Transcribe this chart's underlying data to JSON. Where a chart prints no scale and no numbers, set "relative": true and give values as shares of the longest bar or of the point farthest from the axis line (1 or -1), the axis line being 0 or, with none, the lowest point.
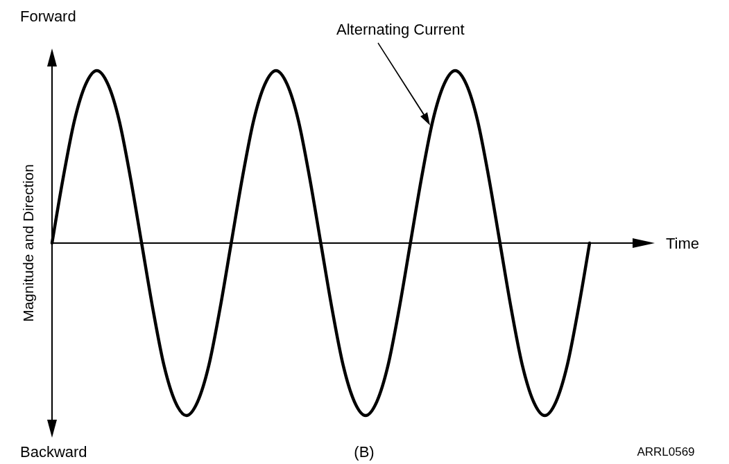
{
  "chart_data": {
    "type": "line",
    "relative": true,
    "xlabel": "Time",
    "ylabel": "Magnitude and Direction",
    "annotations": [
      "Forward",
      "Backward",
      "Alternating Current",
      "(B)",
      "ARRL0569"
    ],
    "categories": [
      null,
      null,
      null,
      null,
      null,
      null,
      null,
      null,
      null,
      null,
      null,
      null,
      null,
      null,
      null,
      null,
      null,
      null,
      null,
      null,
      null,
      null,
      null,
      null,
      null,
      null,
      null,
      null,
      null,
      null,
      null,
      null,
      null,
      null,
      null,
      null,
      null,
      null,
      null,
      null,
      null,
      null,
      null,
      null,
      null,
      null,
      null,
      null,
      null
    ],
    "series": [
      {
        "color": "#000000",
        "values": [
          0,
          0.38,
          0.71,
          0.92,
          1,
          0.92,
          0.71,
          0.38,
          0,
          -0.38,
          -0.71,
          -0.92,
          -1,
          -0.92,
          -0.71,
          -0.38,
          0,
          0.38,
          0.71,
          0.92,
          1,
          0.92,
          0.71,
          0.38,
          0,
          -0.38,
          -0.71,
          -0.92,
          -1,
          -0.92,
          -0.71,
          -0.38,
          0,
          0.38,
          0.71,
          0.92,
          1,
          0.92,
          0.71,
          0.38,
          0,
          -0.38,
          -0.71,
          -0.92,
          -1,
          -0.92,
          -0.71,
          -0.38,
          0
        ]
      }
    ],
    "marker": "none",
    "line_style": "solid",
    "grid": false
  }
}
